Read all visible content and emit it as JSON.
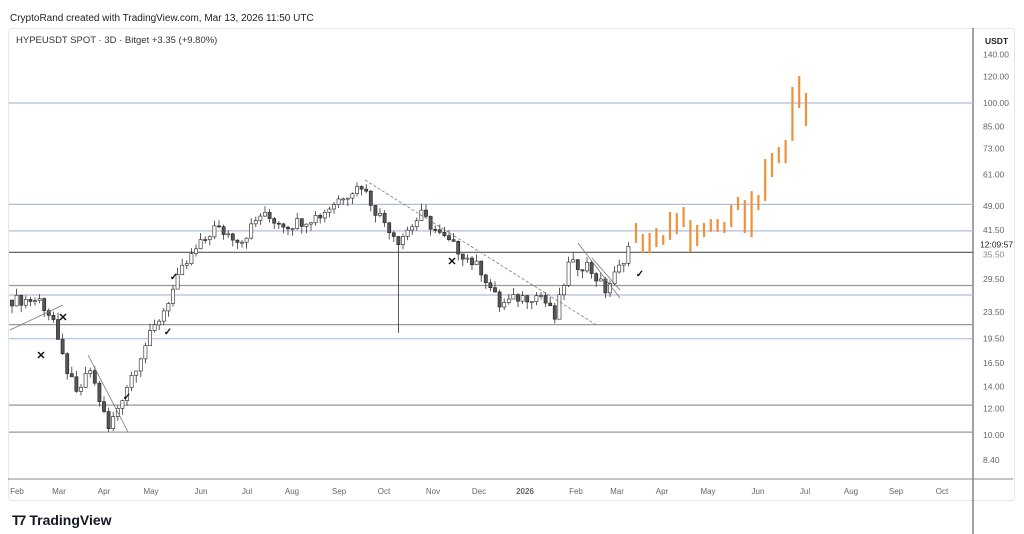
{
  "header": {
    "credit": "CryptoRand created with TradingView.com, Mar 13, 2026 11:50 UTC",
    "symbol": "HYPEUSDT SPOT · 3D · Bitget  +3.35 (+9.80%)"
  },
  "price_axis": {
    "currency": "USDT",
    "labels": [
      "140.00",
      "120.00",
      "100.00",
      "85.00",
      "73.00",
      "61.00",
      "49.00",
      "41.50",
      "29.50",
      "23.50",
      "19.50",
      "16.50",
      "14.00",
      "12.00",
      "10.00",
      "8.40"
    ],
    "values": [
      140,
      120,
      100,
      85,
      73,
      61,
      49,
      41.5,
      29.5,
      23.5,
      19.5,
      16.5,
      14,
      12,
      10,
      8.4
    ],
    "current_price": "35.50",
    "countdown": "12:09:57"
  },
  "time_axis": {
    "labels": [
      "Feb",
      "Mar",
      "Apr",
      "May",
      "Jun",
      "Jul",
      "Aug",
      "Sep",
      "Oct",
      "Nov",
      "Dec",
      "2026",
      "Feb",
      "Mar",
      "Apr",
      "May",
      "Jun",
      "Jul",
      "Aug",
      "Sep",
      "Oct"
    ]
  },
  "levels": [
    {
      "price": 100,
      "color": "#aebfdc"
    },
    {
      "price": 49.5,
      "color": "#aebfdc"
    },
    {
      "price": 41.2,
      "color": "#aebfdc"
    },
    {
      "price": 35.5,
      "color": "#555555"
    },
    {
      "price": 28.2,
      "color": "#999999"
    },
    {
      "price": 26.4,
      "color": "#aebfdc"
    },
    {
      "price": 21.5,
      "color": "#999999"
    },
    {
      "price": 19.5,
      "color": "#aebfdc"
    },
    {
      "price": 12.3,
      "color": "#999999"
    },
    {
      "price": 10.2,
      "color": "#999999"
    }
  ],
  "price_path": [
    [
      0,
      25.5
    ],
    [
      6,
      25.5
    ],
    [
      9,
      22.2
    ],
    [
      10,
      18.7
    ],
    [
      14,
      13.2
    ],
    [
      17,
      15.7
    ],
    [
      21,
      10.4
    ],
    [
      25,
      14.1
    ],
    [
      29,
      18.7
    ],
    [
      33,
      23.8
    ],
    [
      37,
      31.4
    ],
    [
      40,
      36.1
    ],
    [
      44,
      42
    ],
    [
      50,
      38.7
    ],
    [
      54,
      46
    ],
    [
      60,
      42.9
    ],
    [
      67,
      46
    ],
    [
      72,
      52.8
    ],
    [
      76,
      56.6
    ],
    [
      79,
      47.6
    ],
    [
      84,
      38.7
    ],
    [
      89,
      46
    ],
    [
      93,
      40
    ],
    [
      97,
      36.1
    ],
    [
      102,
      31.4
    ],
    [
      106,
      24.6
    ],
    [
      110,
      25.9
    ],
    [
      115,
      26.4
    ],
    [
      118,
      22.5
    ],
    [
      121,
      32.5
    ],
    [
      125,
      32.5
    ],
    [
      129,
      27.3
    ],
    [
      132,
      31.8
    ],
    [
      134,
      36.8
    ]
  ],
  "projection_bars": [
    [
      43.5,
      37.9
    ],
    [
      40.3,
      35.3
    ],
    [
      40.6,
      35.3
    ],
    [
      42,
      36.8
    ],
    [
      40,
      37.4
    ],
    [
      47,
      38.7
    ],
    [
      46.6,
      40.3
    ],
    [
      48.6,
      42.3
    ],
    [
      44.4,
      35.6
    ],
    [
      42.9,
      37.1
    ],
    [
      43.5,
      39.5
    ],
    [
      44.7,
      40.9
    ],
    [
      44.7,
      40.9
    ],
    [
      43.8,
      40.6
    ],
    [
      49.3,
      42.3
    ],
    [
      52.1,
      47.6
    ],
    [
      51,
      40.6
    ],
    [
      54.3,
      39.5
    ],
    [
      52.8,
      47.6
    ],
    [
      67.8,
      50.7
    ],
    [
      70.7,
      59.8
    ],
    [
      73.7,
      65.9
    ],
    [
      77.4,
      65.9
    ],
    [
      111.7,
      76.9
    ],
    [
      120.6,
      96.6
    ],
    [
      107.2,
      85.3
    ]
  ],
  "annotations": {
    "cross": "✕",
    "check": "✓"
  },
  "colors": {
    "projection": "#f0913a",
    "candle_up": "#ffffff",
    "candle_down": "#555555",
    "outline": "#222222"
  },
  "brand": "TradingView"
}
